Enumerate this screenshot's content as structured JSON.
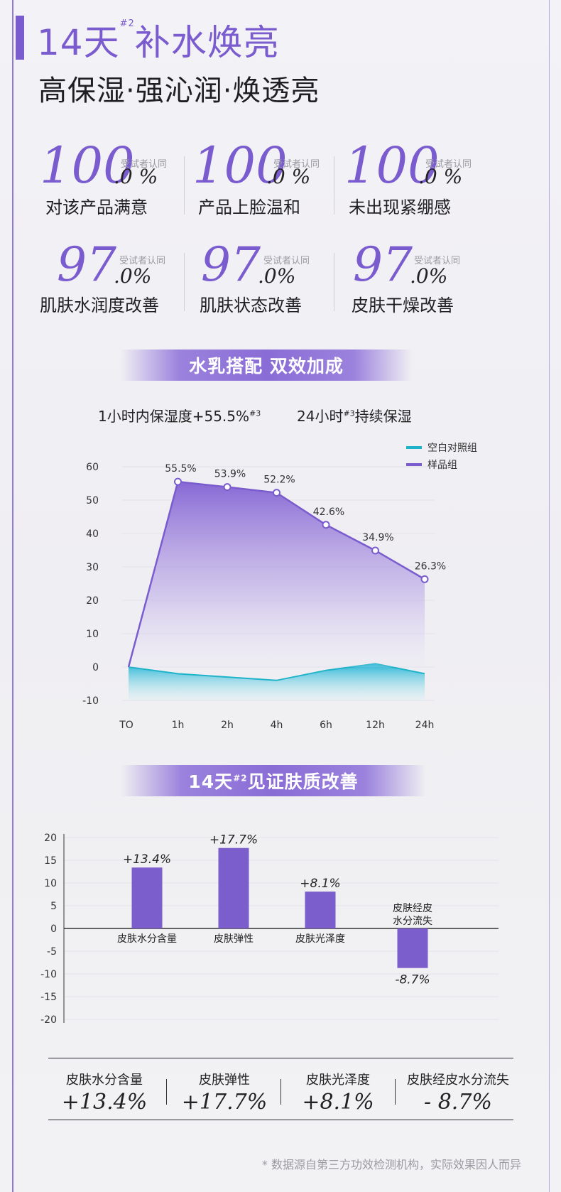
{
  "header": {
    "title_main": "14天",
    "title_sup": "#2",
    "title_rest": "补水焕亮",
    "subtitle": "高保湿·强沁润·焕透亮"
  },
  "stats": [
    {
      "big": "100",
      "decimal": ".0 %",
      "tiny": "受试者认同",
      "label": "对该产品满意"
    },
    {
      "big": "100",
      "decimal": ".0 %",
      "tiny": "受试者认同",
      "label": "产品上脸温和"
    },
    {
      "big": "100",
      "decimal": ".0 %",
      "tiny": "受试者认同",
      "label": "未出现紧绷感"
    },
    {
      "big": "97",
      "decimal": ".0%",
      "tiny": "受试者认同",
      "label": "肌肤水润度改善"
    },
    {
      "big": "97",
      "decimal": ".0%",
      "tiny": "受试者认同",
      "label": "肌肤状态改善"
    },
    {
      "big": "97",
      "decimal": ".0%",
      "tiny": "受试者认同",
      "label": "皮肤干燥改善"
    }
  ],
  "banner1": "水乳搭配 双效加成",
  "metric1": {
    "text": "1小时内保湿度+55.5%",
    "sup": "#3"
  },
  "metric2": {
    "pre": "24小时",
    "sup": "#3",
    "post": "持续保湿"
  },
  "banner2": {
    "pre": "14天",
    "sup": "#2",
    "post": "见证肤质改善"
  },
  "colors": {
    "purple": "#7a5ccf",
    "teal": "#1fb3c9",
    "bar": "#7b5dcc"
  },
  "chart_data": [
    {
      "type": "area",
      "x": [
        "TO",
        "1h",
        "2h",
        "4h",
        "6h",
        "12h",
        "24h"
      ],
      "series": [
        {
          "name": "空白对照组",
          "values": [
            0,
            -2,
            -3,
            -4,
            -1,
            1,
            -2
          ]
        },
        {
          "name": "样品组",
          "values": [
            0,
            55.5,
            53.9,
            52.2,
            42.6,
            34.9,
            26.3
          ],
          "labels": [
            "",
            "55.5%",
            "53.9%",
            "52.2%",
            "42.6%",
            "34.9%",
            "26.3%"
          ]
        }
      ],
      "yticks": [
        60,
        50,
        40,
        30,
        20,
        10,
        0,
        -10
      ],
      "ylim": [
        -10,
        60
      ],
      "legend": "top-right",
      "grid": true
    },
    {
      "type": "bar",
      "categories": [
        "皮肤水分含量",
        "皮肤弹性",
        "皮肤光泽度",
        "皮肤经皮\n水分流失"
      ],
      "values": [
        13.4,
        17.7,
        8.1,
        -8.7
      ],
      "labels": [
        "+13.4%",
        "+17.7%",
        "+8.1%",
        "-8.7%"
      ],
      "yticks": [
        20,
        15,
        10,
        5,
        0,
        -5,
        -10,
        -15,
        -20
      ],
      "ylim": [
        -20,
        20
      ],
      "grid": true
    }
  ],
  "summary": [
    {
      "label": "皮肤水分含量",
      "value": "+13.4%"
    },
    {
      "label": "皮肤弹性",
      "value": "+17.7%"
    },
    {
      "label": "皮肤光泽度",
      "value": "+8.1%"
    },
    {
      "label": "皮肤经皮水分流失",
      "value": "- 8.7%"
    }
  ],
  "footnote": "* 数据源自第三方功效检测机构，实际效果因人而异"
}
